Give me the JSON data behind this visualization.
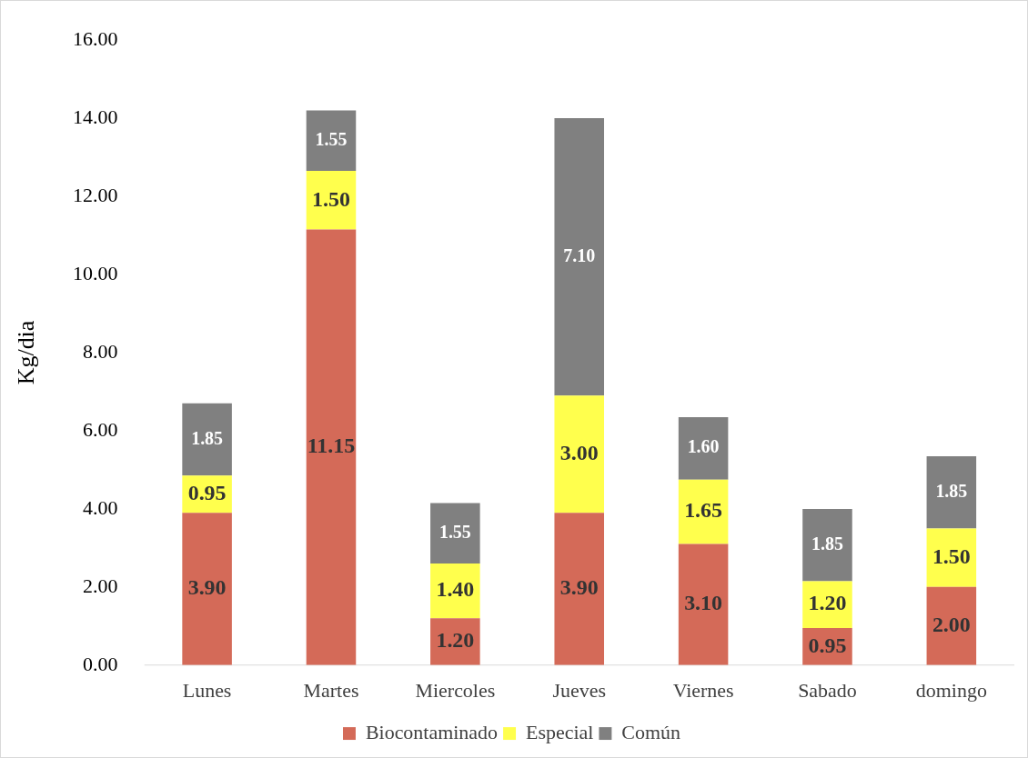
{
  "chart_data": {
    "type": "bar",
    "stacked": true,
    "ylabel": "Kg/dia",
    "categories": [
      "Lunes",
      "Martes",
      "Miercoles",
      "Jueves",
      "Viernes",
      "Sabado",
      "domingo"
    ],
    "series": [
      {
        "name": "Biocontaminado",
        "color": "#d46a58",
        "values": [
          3.9,
          11.15,
          1.2,
          3.9,
          3.1,
          0.95,
          2.0
        ],
        "value_labels": [
          "3.90",
          "11.15",
          "1.20",
          "3.90",
          "3.10",
          "0.95",
          "2.00"
        ]
      },
      {
        "name": "Especial",
        "color": "#ffff4d",
        "values": [
          0.95,
          1.5,
          1.4,
          3.0,
          1.65,
          1.2,
          1.5
        ],
        "value_labels": [
          "0.95",
          "1.50",
          "1.40",
          "3.00",
          "1.65",
          "1.20",
          "1.50"
        ]
      },
      {
        "name": "Común",
        "color": "#808080",
        "values": [
          1.85,
          1.55,
          1.55,
          7.1,
          1.6,
          1.85,
          1.85
        ],
        "value_labels": [
          "1.85",
          "1.55",
          "1.55",
          "7.10",
          "1.60",
          "1.85",
          "1.85"
        ]
      }
    ],
    "ylim": [
      0,
      16
    ],
    "yticks": [
      {
        "value": 0,
        "label": "0.00"
      },
      {
        "value": 2,
        "label": "2.00"
      },
      {
        "value": 4,
        "label": "4.00"
      },
      {
        "value": 6,
        "label": "6.00"
      },
      {
        "value": 8,
        "label": "8.00"
      },
      {
        "value": 10,
        "label": "10.00"
      },
      {
        "value": 12,
        "label": "12.00"
      },
      {
        "value": 14,
        "label": "14.00"
      },
      {
        "value": 16,
        "label": "16.00"
      }
    ],
    "grid": false,
    "legend": "bottom"
  }
}
